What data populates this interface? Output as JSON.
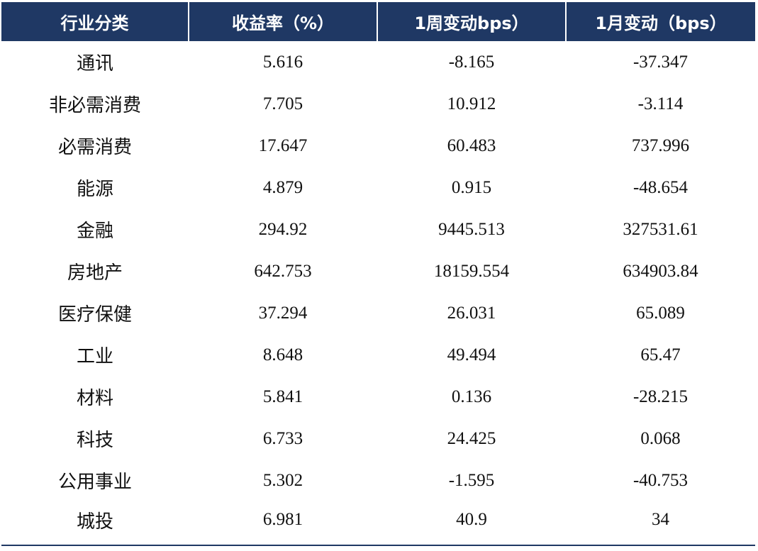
{
  "table": {
    "headers": [
      "行业分类",
      "收益率（%）",
      "1周变动bps）",
      "1月变动（bps）"
    ],
    "rows": [
      [
        "通讯",
        "5.616",
        "-8.165",
        "-37.347"
      ],
      [
        "非必需消费",
        "7.705",
        "10.912",
        "-3.114"
      ],
      [
        "必需消费",
        "17.647",
        "60.483",
        "737.996"
      ],
      [
        "能源",
        "4.879",
        "0.915",
        "-48.654"
      ],
      [
        "金融",
        "294.92",
        "9445.513",
        "327531.61"
      ],
      [
        "房地产",
        "642.753",
        "18159.554",
        "634903.84"
      ],
      [
        "医疗保健",
        "37.294",
        "26.031",
        "65.089"
      ],
      [
        "工业",
        "8.648",
        "49.494",
        "65.47"
      ],
      [
        "材料",
        "5.841",
        "0.136",
        "-28.215"
      ],
      [
        "科技",
        "6.733",
        "24.425",
        "0.068"
      ],
      [
        "公用事业",
        "5.302",
        "-1.595",
        "-40.753"
      ],
      [
        "城投",
        "6.981",
        "40.9",
        "34"
      ]
    ]
  },
  "colors": {
    "header_bg": "#1f3864",
    "header_text": "#ffffff",
    "body_text": "#111111"
  }
}
